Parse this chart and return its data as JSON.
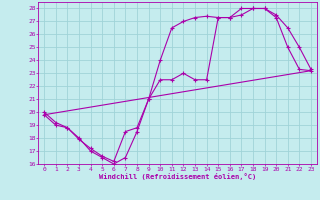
{
  "xlabel": "Windchill (Refroidissement éolien,°C)",
  "bg_color": "#c5ecee",
  "grid_color": "#a0d4d8",
  "line_color": "#aa00aa",
  "xlim": [
    -0.5,
    23.5
  ],
  "ylim": [
    16,
    28.5
  ],
  "xticks": [
    0,
    1,
    2,
    3,
    4,
    5,
    6,
    7,
    8,
    9,
    10,
    11,
    12,
    13,
    14,
    15,
    16,
    17,
    18,
    19,
    20,
    21,
    22,
    23
  ],
  "yticks": [
    16,
    17,
    18,
    19,
    20,
    21,
    22,
    23,
    24,
    25,
    26,
    27,
    28
  ],
  "curve1_x": [
    0,
    1,
    2,
    3,
    4,
    5,
    6,
    7,
    8,
    9,
    10,
    11,
    12,
    13,
    14,
    15,
    16,
    17,
    18,
    19,
    20,
    21,
    22,
    23
  ],
  "curve1_y": [
    20.0,
    19.2,
    18.8,
    18.0,
    17.0,
    16.5,
    16.0,
    16.5,
    18.5,
    21.0,
    22.5,
    22.5,
    23.0,
    22.5,
    22.5,
    27.3,
    27.3,
    27.5,
    28.0,
    28.0,
    27.5,
    26.5,
    25.0,
    23.3
  ],
  "curve2_x": [
    0,
    1,
    2,
    3,
    4,
    5,
    6,
    7,
    8,
    9,
    10,
    11,
    12,
    13,
    14,
    15,
    16,
    17,
    18,
    19,
    20,
    21,
    22,
    23
  ],
  "curve2_y": [
    19.8,
    19.0,
    18.8,
    17.9,
    17.2,
    16.6,
    16.2,
    18.5,
    18.8,
    21.0,
    24.0,
    26.5,
    27.0,
    27.3,
    27.4,
    27.3,
    27.3,
    28.0,
    28.0,
    28.0,
    27.3,
    25.0,
    23.3,
    23.2
  ],
  "curve3_x": [
    0,
    23
  ],
  "curve3_y": [
    19.8,
    23.2
  ]
}
